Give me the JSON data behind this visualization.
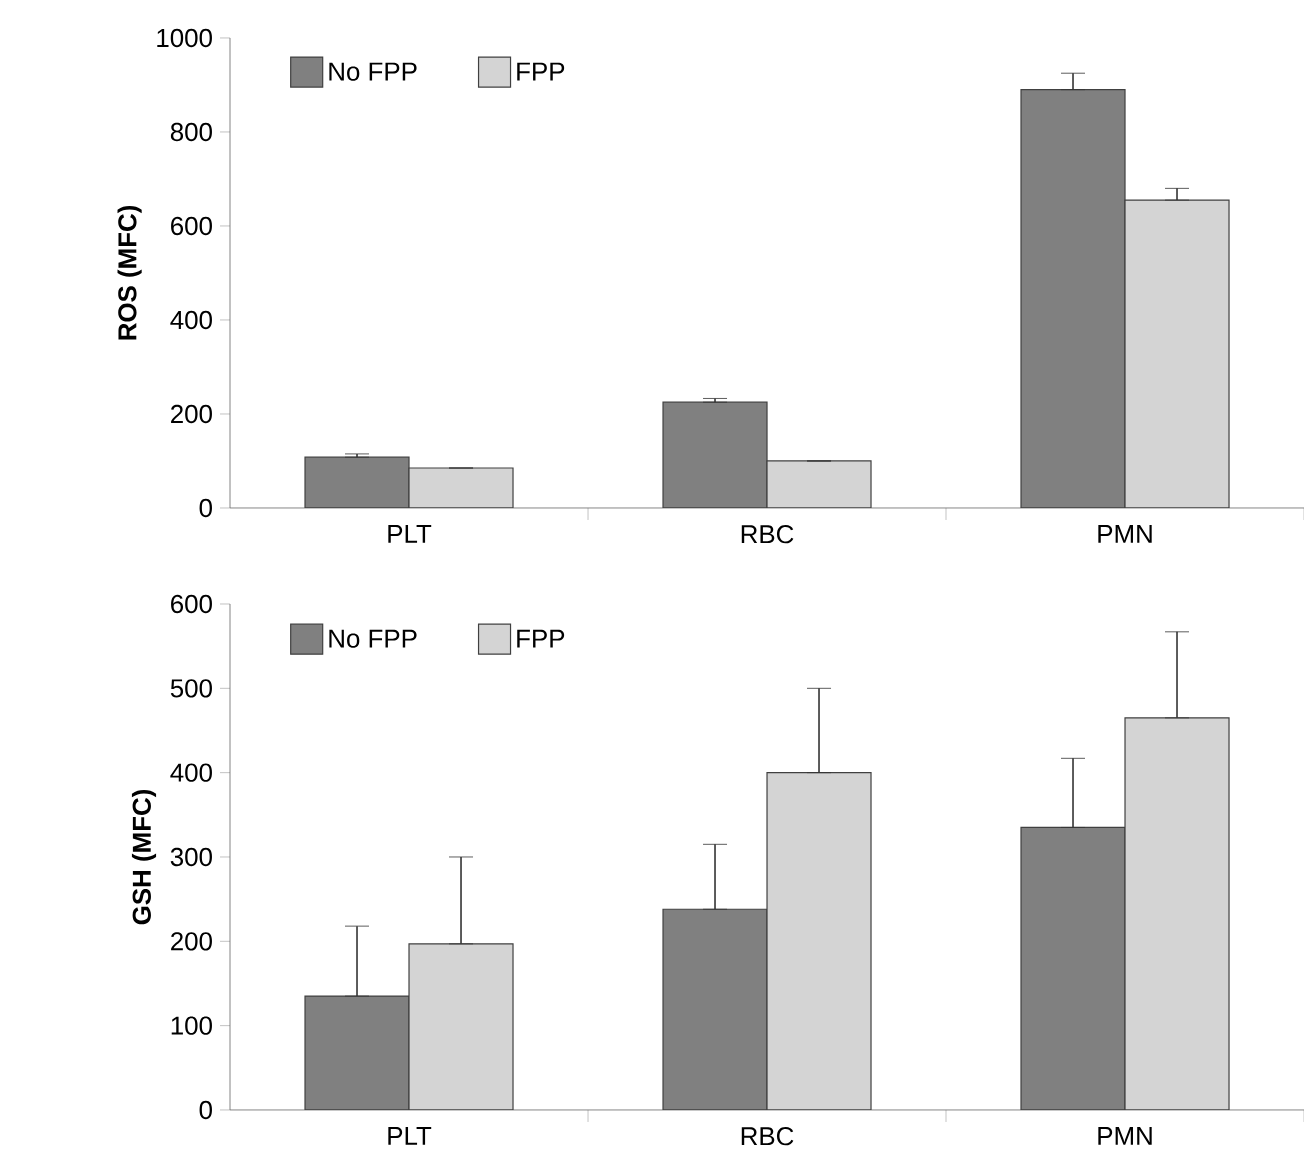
{
  "chart_data": [
    {
      "type": "bar",
      "ylabel": "ROS (MFC)",
      "categories": [
        "PLT",
        "RBC",
        "PMN"
      ],
      "ylim": [
        0,
        1000
      ],
      "yticks": [
        0,
        200,
        400,
        600,
        800,
        1000
      ],
      "legend": "top left",
      "series": [
        {
          "name": "No FPP",
          "color": "#808080",
          "values": [
            108,
            225,
            890
          ],
          "errors": [
            [
              108,
              115
            ],
            [
              225,
              233
            ],
            [
              890,
              925
            ]
          ]
        },
        {
          "name": "FPP",
          "color": "#d4d4d4",
          "values": [
            85,
            100,
            655
          ],
          "errors": [
            null,
            null,
            [
              655,
              680
            ]
          ]
        }
      ]
    },
    {
      "type": "bar",
      "ylabel": "GSH (MFC)",
      "categories": [
        "PLT",
        "RBC",
        "PMN"
      ],
      "ylim": [
        0,
        600
      ],
      "yticks": [
        0,
        100,
        200,
        300,
        400,
        500,
        600
      ],
      "legend": "top left",
      "series": [
        {
          "name": "No FPP",
          "color": "#808080",
          "values": [
            135,
            238,
            335
          ],
          "errors": [
            [
              135,
              218
            ],
            [
              238,
              315
            ],
            [
              335,
              417
            ]
          ]
        },
        {
          "name": "FPP",
          "color": "#d4d4d4",
          "values": [
            197,
            400,
            465
          ],
          "errors": [
            [
              197,
              300
            ],
            [
              400,
              500
            ],
            [
              465,
              567
            ]
          ]
        }
      ]
    }
  ]
}
